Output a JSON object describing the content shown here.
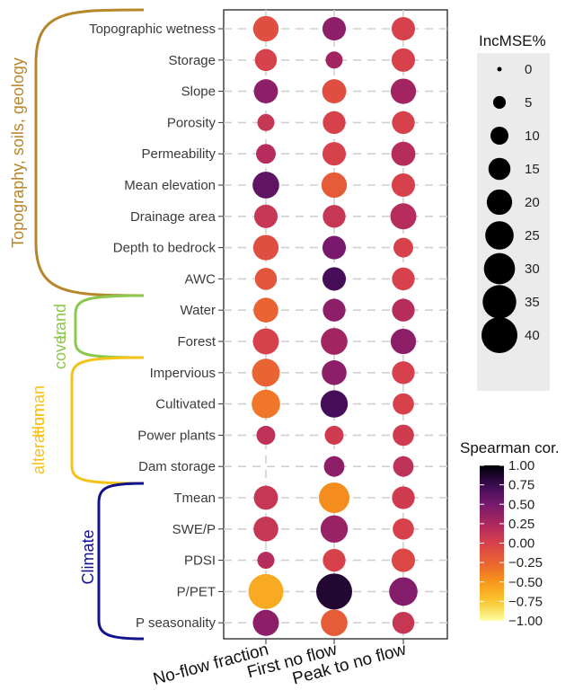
{
  "chart_data": {
    "type": "scatter",
    "subtype": "dot-matrix",
    "x_categories": [
      "No-flow fraction",
      "First no flow",
      "Peak to no flow"
    ],
    "y_categories": [
      "Topographic wetness",
      "Storage",
      "Slope",
      "Porosity",
      "Permeability",
      "Mean elevation",
      "Drainage area",
      "Depth to bedrock",
      "AWC",
      "Water",
      "Forest",
      "Impervious",
      "Cultivated",
      "Power plants",
      "Dam storage",
      "Tmean",
      "SWE/P",
      "PDSI",
      "P/PET",
      "P seasonality"
    ],
    "incmse": [
      [
        20,
        17,
        17
      ],
      [
        15,
        9,
        17
      ],
      [
        18,
        18,
        20
      ],
      [
        9,
        16,
        16
      ],
      [
        12,
        17,
        18
      ],
      [
        22,
        20,
        17
      ],
      [
        17,
        16,
        21
      ],
      [
        20,
        17,
        12
      ],
      [
        15,
        17,
        16
      ],
      [
        19,
        16,
        16
      ],
      [
        21,
        22,
        20
      ],
      [
        24,
        19,
        16
      ],
      [
        25,
        23,
        14
      ],
      [
        11,
        11,
        14
      ],
      [
        0,
        13,
        13
      ],
      [
        18,
        29,
        16
      ],
      [
        19,
        23,
        14
      ],
      [
        9,
        16,
        17
      ],
      [
        38,
        40,
        25
      ],
      [
        21,
        22,
        15
      ]
    ],
    "spearman": [
      [
        -0.1,
        0.4,
        0.0
      ],
      [
        0.0,
        0.3,
        0.0
      ],
      [
        0.4,
        -0.1,
        0.3
      ],
      [
        0.1,
        0.0,
        0.0
      ],
      [
        0.2,
        0.0,
        0.2
      ],
      [
        0.6,
        -0.2,
        0.0
      ],
      [
        0.1,
        0.1,
        0.2
      ],
      [
        -0.1,
        0.5,
        0.0
      ],
      [
        -0.15,
        0.7,
        0.0
      ],
      [
        -0.25,
        0.4,
        0.2
      ],
      [
        0.0,
        0.3,
        0.4
      ],
      [
        -0.25,
        0.4,
        0.0
      ],
      [
        -0.35,
        0.7,
        0.0
      ],
      [
        0.15,
        0.05,
        0.05
      ],
      [
        0.0,
        0.4,
        0.15
      ],
      [
        0.1,
        -0.45,
        0.05
      ],
      [
        0.1,
        0.35,
        0.0
      ],
      [
        0.2,
        0.0,
        -0.05
      ],
      [
        -0.6,
        0.85,
        0.45
      ],
      [
        0.4,
        -0.2,
        0.1
      ]
    ],
    "groups": [
      {
        "label": "Topography, soils, geology",
        "color": "#b8862a",
        "from": 0,
        "to": 8
      },
      {
        "label_lines": [
          "Land",
          "cover"
        ],
        "color": "#8cc84b",
        "from": 9,
        "to": 10
      },
      {
        "label_lines": [
          "Human",
          "alteration"
        ],
        "color": "#f5c218",
        "from": 11,
        "to": 14
      },
      {
        "label": "Climate",
        "color": "#12128c",
        "from": 15,
        "to": 19
      }
    ],
    "size_legend": {
      "title": "IncMSE%",
      "values": [
        "0",
        "5",
        "10",
        "15",
        "20",
        "25",
        "30",
        "35",
        "40"
      ]
    },
    "color_legend": {
      "title": "Spearman cor.",
      "ticks": [
        "1.00",
        "0.75",
        "0.50",
        "0.25",
        "0.00",
        "−0.25",
        "−0.50",
        "−0.75",
        "−1.00"
      ],
      "range": [
        -1,
        1
      ]
    }
  }
}
